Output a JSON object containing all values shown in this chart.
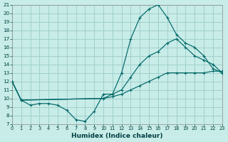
{
  "xlabel": "Humidex (Indice chaleur)",
  "bg_color": "#c8ece8",
  "grid_color": "#a0d0cc",
  "line_color": "#006868",
  "xlim": [
    0,
    23
  ],
  "ylim": [
    7,
    21
  ],
  "xtick_labels": [
    "0",
    "1",
    "2",
    "3",
    "4",
    "5",
    "6",
    "7",
    "8",
    "9",
    "10",
    "11",
    "12",
    "13",
    "14",
    "15",
    "16",
    "17",
    "18",
    "19",
    "20",
    "21",
    "22",
    "23"
  ],
  "xticks": [
    0,
    1,
    2,
    3,
    4,
    5,
    6,
    7,
    8,
    9,
    10,
    11,
    12,
    13,
    14,
    15,
    16,
    17,
    18,
    19,
    20,
    21,
    22,
    23
  ],
  "yticks": [
    7,
    8,
    9,
    10,
    11,
    12,
    13,
    14,
    15,
    16,
    17,
    18,
    19,
    20,
    21
  ],
  "line1_x": [
    0,
    1,
    2,
    3,
    4,
    5,
    6,
    7,
    8,
    9,
    10,
    11,
    12,
    13,
    14,
    15,
    16,
    17,
    18,
    19,
    20,
    21,
    22,
    23
  ],
  "line1_y": [
    12.0,
    9.8,
    9.2,
    9.4,
    9.4,
    9.2,
    8.6,
    7.5,
    7.3,
    8.5,
    10.5,
    10.5,
    13.0,
    17.0,
    19.5,
    20.5,
    21.0,
    19.5,
    17.5,
    16.5,
    16.0,
    15.0,
    13.5,
    13.0
  ],
  "line2_x": [
    0,
    1,
    10,
    11,
    12,
    13,
    14,
    15,
    16,
    17,
    18,
    19,
    20,
    21,
    22,
    23
  ],
  "line2_y": [
    12.0,
    9.8,
    10.0,
    10.5,
    11.0,
    12.5,
    14.0,
    15.0,
    15.5,
    16.5,
    17.0,
    16.0,
    15.0,
    14.5,
    14.0,
    13.0
  ],
  "line3_x": [
    0,
    1,
    10,
    11,
    12,
    13,
    14,
    15,
    16,
    17,
    18,
    19,
    20,
    21,
    22,
    23
  ],
  "line3_y": [
    12.0,
    9.8,
    10.0,
    10.2,
    10.5,
    11.0,
    11.5,
    12.0,
    12.5,
    13.0,
    13.0,
    13.0,
    13.0,
    13.0,
    13.2,
    13.2
  ]
}
